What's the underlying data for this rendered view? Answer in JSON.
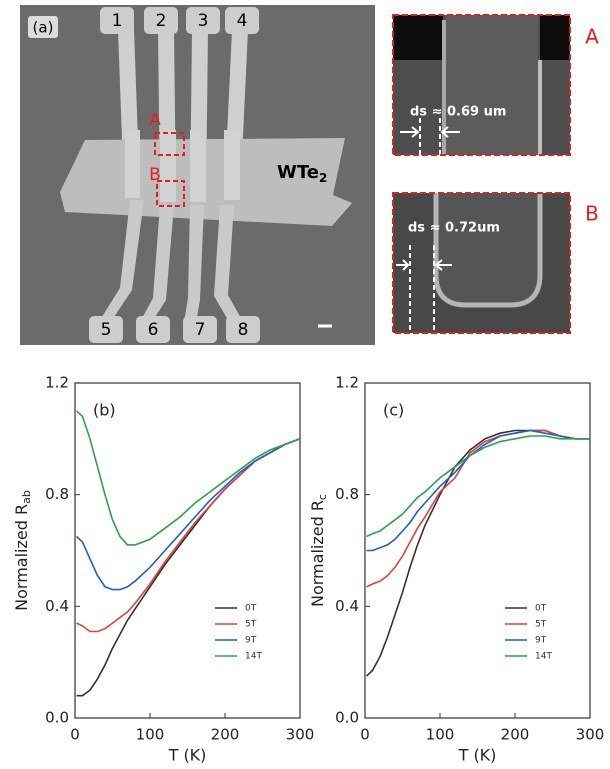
{
  "image_panel": {
    "panel_label": "(a)",
    "electrodes": [
      "1",
      "2",
      "3",
      "4",
      "5",
      "6",
      "7",
      "8"
    ],
    "region_labels": [
      "A",
      "B"
    ],
    "material": "WTe",
    "material_sub": "2",
    "insets": [
      {
        "label": "A",
        "annotation": "ds ≈ 0.69 um"
      },
      {
        "label": "B",
        "annotation": "ds ≈ 0.72um"
      }
    ]
  },
  "chart_data": [
    {
      "type": "line",
      "annotation": "(b)",
      "x_label": "T (K)",
      "y_label": "Normalized R",
      "y_label_sub": "ab",
      "xlim": [
        0,
        300
      ],
      "xticks": [
        0,
        100,
        200,
        300
      ],
      "ylim": [
        0,
        1.2
      ],
      "yticks": [
        {
          "value": 0,
          "label": "0.0"
        },
        0.4,
        0.8,
        1.2
      ],
      "legend": "lower right",
      "x": [
        2,
        10,
        20,
        30,
        40,
        50,
        60,
        70,
        80,
        100,
        120,
        140,
        160,
        180,
        200,
        220,
        240,
        260,
        280,
        300
      ],
      "series": [
        {
          "name": "0T",
          "color": "#333333",
          "values": [
            0.08,
            0.08,
            0.1,
            0.14,
            0.19,
            0.25,
            0.3,
            0.35,
            0.39,
            0.47,
            0.55,
            0.62,
            0.69,
            0.76,
            0.82,
            0.87,
            0.92,
            0.95,
            0.98,
            1.0
          ]
        },
        {
          "name": "5T",
          "color": "#e0403a",
          "values": [
            0.34,
            0.33,
            0.31,
            0.31,
            0.32,
            0.34,
            0.36,
            0.38,
            0.41,
            0.48,
            0.56,
            0.63,
            0.7,
            0.76,
            0.82,
            0.87,
            0.92,
            0.95,
            0.98,
            1.0
          ]
        },
        {
          "name": "9T",
          "color": "#1f5fc9",
          "values": [
            0.65,
            0.63,
            0.57,
            0.51,
            0.47,
            0.46,
            0.46,
            0.47,
            0.49,
            0.54,
            0.6,
            0.66,
            0.72,
            0.78,
            0.83,
            0.88,
            0.92,
            0.95,
            0.98,
            1.0
          ]
        },
        {
          "name": "14T",
          "color": "#2fa04a",
          "values": [
            1.1,
            1.08,
            1.0,
            0.9,
            0.8,
            0.71,
            0.65,
            0.62,
            0.62,
            0.64,
            0.68,
            0.72,
            0.77,
            0.81,
            0.85,
            0.89,
            0.93,
            0.96,
            0.98,
            1.0
          ]
        }
      ]
    },
    {
      "type": "line",
      "annotation": "(c)",
      "x_label": "T (K)",
      "y_label": "Normalized R",
      "y_label_sub": "c",
      "xlim": [
        0,
        300
      ],
      "xticks": [
        0,
        100,
        200,
        300
      ],
      "ylim": [
        0,
        1.2
      ],
      "yticks": [
        {
          "value": 0,
          "label": "0.0"
        },
        0.4,
        0.8,
        1.2
      ],
      "legend": "lower right",
      "x": [
        2,
        10,
        20,
        30,
        40,
        50,
        60,
        70,
        80,
        100,
        120,
        140,
        160,
        180,
        200,
        220,
        240,
        260,
        280,
        300
      ],
      "series": [
        {
          "name": "0T",
          "color": "#333333",
          "values": [
            0.15,
            0.17,
            0.22,
            0.29,
            0.37,
            0.45,
            0.54,
            0.62,
            0.69,
            0.8,
            0.9,
            0.96,
            1.0,
            1.02,
            1.03,
            1.03,
            1.03,
            1.01,
            1.0,
            1.0
          ]
        },
        {
          "name": "5T",
          "color": "#e0403a",
          "values": [
            0.47,
            0.48,
            0.49,
            0.51,
            0.54,
            0.58,
            0.63,
            0.68,
            0.72,
            0.81,
            0.86,
            0.95,
            0.99,
            1.01,
            1.02,
            1.03,
            1.03,
            1.01,
            1.0,
            1.0
          ]
        },
        {
          "name": "9T",
          "color": "#1f5fc9",
          "values": [
            0.6,
            0.6,
            0.61,
            0.62,
            0.64,
            0.67,
            0.7,
            0.74,
            0.77,
            0.83,
            0.88,
            0.94,
            0.98,
            1.01,
            1.02,
            1.03,
            1.02,
            1.01,
            1.0,
            1.0
          ]
        },
        {
          "name": "14T",
          "color": "#2fa04a",
          "values": [
            0.65,
            0.66,
            0.67,
            0.69,
            0.71,
            0.73,
            0.76,
            0.79,
            0.81,
            0.86,
            0.9,
            0.94,
            0.97,
            0.99,
            1.0,
            1.01,
            1.01,
            1.0,
            1.0,
            1.0
          ]
        }
      ]
    }
  ]
}
